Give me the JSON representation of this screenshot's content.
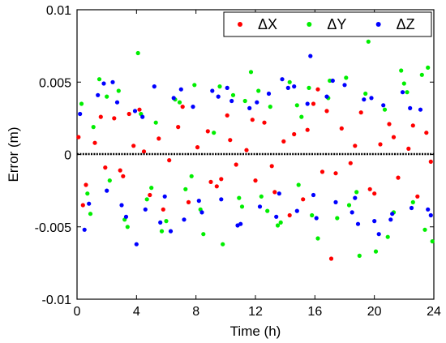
{
  "chart_data": {
    "type": "scatter",
    "xlabel": "Time (h)",
    "ylabel": "Error (m)",
    "xlim": [
      0,
      24
    ],
    "ylim": [
      -0.01,
      0.01
    ],
    "x_ticks": [
      0,
      4,
      8,
      12,
      16,
      20,
      24
    ],
    "x_tick_labels": [
      "0",
      "4",
      "8",
      "12",
      "16",
      "20",
      "24"
    ],
    "y_ticks": [
      -0.01,
      -0.005,
      0,
      0.005,
      0.01
    ],
    "y_tick_labels": [
      "-0.01",
      "-0.005",
      "0",
      "0.005",
      "0.01"
    ],
    "grid": false,
    "legend_position": "top-right",
    "series": [
      {
        "name": "ΔX",
        "color": "#ff0000",
        "x": [
          0.1,
          0.6,
          1.2,
          1.9,
          2.5,
          3.1,
          3.8,
          4.2,
          4.9,
          5.5,
          6.2,
          6.8,
          7.5,
          8.1,
          8.8,
          9.4,
          10.1,
          10.7,
          11.4,
          12.0,
          12.6,
          13.3,
          13.9,
          14.6,
          15.2,
          15.9,
          16.5,
          17.1,
          17.8,
          18.4,
          19.1,
          19.7,
          20.4,
          21.0,
          21.6,
          22.3,
          22.9,
          23.5,
          0.4,
          1.6,
          2.9,
          4.5,
          5.8,
          7.1,
          9.0,
          10.3,
          11.8,
          13.1,
          14.3,
          15.5,
          16.8,
          17.4,
          18.7,
          20.0,
          21.3,
          22.6,
          23.8,
          3.5,
          9.7,
          16.2
        ],
        "y": [
          0.0012,
          -0.0021,
          0.0008,
          -0.0009,
          0.0025,
          -0.0015,
          0.0006,
          0.0031,
          -0.0028,
          0.0011,
          -0.0004,
          0.0019,
          -0.0033,
          0.0005,
          0.0016,
          -0.0022,
          0.0027,
          -0.0007,
          0.0003,
          -0.0018,
          0.0022,
          -0.0026,
          0.0009,
          0.0014,
          -0.0031,
          0.0035,
          -0.0012,
          -0.0072,
          0.0018,
          -0.0006,
          0.0029,
          -0.0024,
          0.0007,
          0.0021,
          -0.0016,
          0.0004,
          -0.0029,
          0.0015,
          -0.0035,
          0.0026,
          -0.0011,
          0.0002,
          -0.0038,
          0.0033,
          -0.0019,
          0.001,
          0.0024,
          -0.0008,
          -0.0042,
          0.0017,
          0.003,
          -0.0013,
          0.0006,
          -0.0027,
          0.0012,
          0.002,
          -0.0005,
          0.0028,
          -0.0017,
          0.0045
        ]
      },
      {
        "name": "ΔY",
        "color": "#00ee00",
        "x": [
          0.3,
          0.9,
          1.5,
          2.2,
          2.8,
          3.4,
          4.1,
          4.7,
          5.3,
          6.0,
          6.6,
          7.3,
          7.9,
          8.5,
          9.2,
          9.8,
          10.5,
          11.1,
          11.7,
          12.4,
          13.0,
          13.7,
          14.3,
          14.9,
          15.6,
          16.2,
          16.9,
          17.5,
          18.1,
          18.8,
          19.4,
          20.1,
          20.7,
          21.3,
          22.0,
          22.6,
          23.2,
          23.9,
          0.7,
          2.0,
          3.2,
          4.3,
          5.7,
          6.9,
          8.3,
          9.6,
          10.9,
          12.2,
          13.5,
          14.8,
          15.8,
          17.0,
          18.3,
          19.6,
          20.9,
          22.2,
          23.4,
          1.1,
          7.7,
          19.0,
          21.8,
          23.6,
          11.3,
          15.1,
          5.0,
          12.8
        ],
        "y": [
          0.0035,
          -0.0041,
          0.0052,
          -0.0018,
          0.0044,
          -0.005,
          0.007,
          -0.0031,
          0.0022,
          -0.0046,
          0.0038,
          -0.0024,
          0.0048,
          -0.0055,
          0.0015,
          -0.0062,
          0.0041,
          -0.0036,
          0.0057,
          -0.0029,
          0.0033,
          -0.0047,
          0.005,
          -0.0021,
          0.0046,
          -0.0058,
          0.0039,
          -0.0044,
          0.0053,
          -0.0026,
          0.0042,
          -0.0067,
          0.0031,
          -0.004,
          0.0049,
          -0.0033,
          0.0055,
          -0.006,
          -0.0027,
          0.004,
          -0.0045,
          0.0028,
          -0.0053,
          0.0036,
          -0.0038,
          0.0047,
          -0.003,
          0.0044,
          -0.0049,
          0.0034,
          -0.0042,
          0.0051,
          -0.0035,
          0.0078,
          -0.0057,
          0.0043,
          -0.0052,
          0.0019,
          -0.0015,
          -0.007,
          0.0058,
          0.006,
          0.0037,
          0.0026,
          -0.0023,
          -0.0039
        ]
      },
      {
        "name": "ΔZ",
        "color": "#0000ff",
        "x": [
          0.2,
          0.8,
          1.4,
          2.0,
          2.7,
          3.3,
          3.9,
          4.6,
          5.2,
          5.9,
          6.5,
          7.2,
          7.8,
          8.4,
          9.1,
          9.7,
          10.4,
          11.0,
          11.6,
          12.3,
          12.9,
          13.6,
          14.2,
          14.8,
          15.5,
          16.1,
          16.8,
          17.4,
          18.0,
          18.7,
          19.3,
          20.0,
          20.6,
          21.2,
          21.9,
          22.5,
          23.1,
          23.8,
          0.5,
          1.8,
          3.0,
          4.4,
          5.6,
          7.0,
          8.2,
          9.5,
          10.8,
          12.1,
          13.4,
          14.6,
          15.9,
          17.2,
          18.5,
          19.8,
          21.1,
          22.4,
          23.6,
          2.4,
          6.3,
          10.1,
          15.7,
          18.9,
          4.0,
          13.8,
          20.3
        ],
        "y": [
          0.0028,
          -0.0034,
          0.0041,
          -0.0025,
          0.0036,
          -0.0043,
          0.003,
          -0.0038,
          0.0047,
          -0.0029,
          0.0039,
          -0.0045,
          0.0033,
          -0.004,
          0.0044,
          -0.0031,
          0.0037,
          -0.0048,
          0.0032,
          -0.0036,
          0.0042,
          -0.0027,
          0.0046,
          -0.0039,
          0.0035,
          -0.0044,
          0.004,
          -0.0033,
          0.0048,
          -0.003,
          0.0038,
          -0.0046,
          0.0034,
          -0.0041,
          0.0043,
          -0.0037,
          0.0031,
          -0.0042,
          -0.0052,
          0.0049,
          -0.0035,
          0.0026,
          -0.0047,
          0.0045,
          -0.0032,
          0.004,
          -0.0049,
          0.0036,
          -0.0043,
          0.0047,
          -0.0028,
          0.0051,
          -0.004,
          0.0039,
          -0.0045,
          0.0032,
          -0.0038,
          0.005,
          -0.0053,
          0.0046,
          0.0068,
          -0.0048,
          -0.0062,
          0.0052,
          -0.0055
        ]
      }
    ]
  }
}
